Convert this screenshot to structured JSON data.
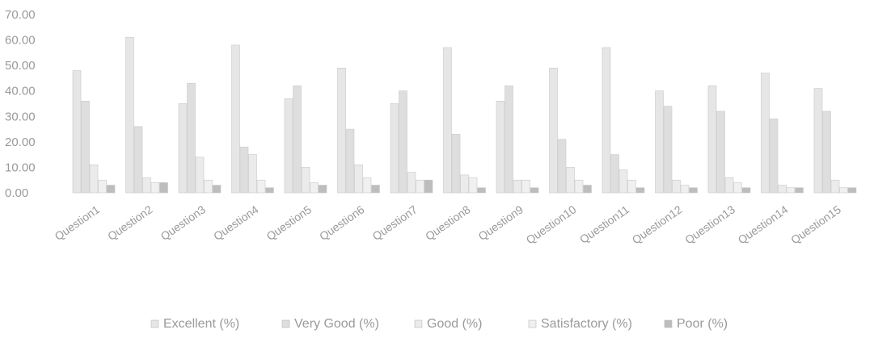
{
  "chart_data": {
    "type": "bar",
    "categories": [
      "Question1",
      "Question2",
      "Question3",
      "Question4",
      "Question5",
      "Question6",
      "Question7",
      "Question8",
      "Question9",
      "Question10",
      "Question11",
      "Question12",
      "Question13",
      "Question14",
      "Question15"
    ],
    "series": [
      {
        "name": "Excellent (%)",
        "color": "#e6e6e6",
        "values": [
          48,
          61,
          35,
          58,
          37,
          49,
          35,
          57,
          36,
          49,
          57,
          40,
          42,
          47,
          41
        ]
      },
      {
        "name": "Very Good (%)",
        "color": "#dedede",
        "values": [
          36,
          26,
          43,
          18,
          42,
          25,
          40,
          23,
          42,
          21,
          15,
          34,
          32,
          29,
          32
        ]
      },
      {
        "name": "Good (%)",
        "color": "#ebebeb",
        "values": [
          11,
          6,
          14,
          15,
          10,
          11,
          8,
          7,
          5,
          10,
          9,
          5,
          6,
          3,
          5
        ]
      },
      {
        "name": "Satisfactory (%)",
        "color": "#f0f0f0",
        "values": [
          5,
          4,
          5,
          5,
          4,
          6,
          5,
          6,
          5,
          5,
          5,
          3,
          4,
          2,
          2
        ]
      },
      {
        "name": "Poor (%)",
        "color": "#bdbdbd",
        "values": [
          3,
          4,
          3,
          2,
          3,
          3,
          5,
          2,
          2,
          3,
          2,
          2,
          2,
          2,
          2
        ]
      }
    ],
    "yticks": [
      "0.00",
      "10.00",
      "20.00",
      "30.00",
      "40.00",
      "50.00",
      "60.00",
      "70.00"
    ],
    "ylim": [
      0,
      70
    ],
    "grid": false,
    "legend": "bottom"
  }
}
